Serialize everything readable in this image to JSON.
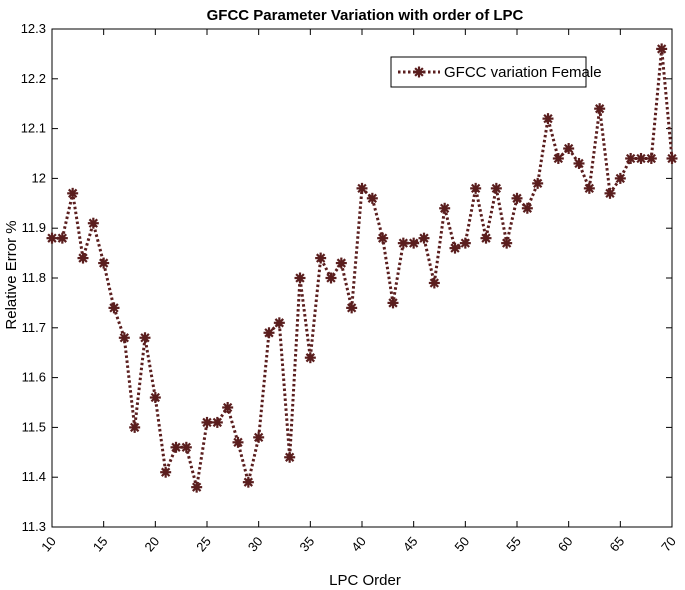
{
  "chart_data": {
    "type": "line",
    "title": "GFCC Parameter Variation with order of LPC",
    "xlabel": "LPC Order",
    "ylabel": "Relative Error %",
    "xlim": [
      10,
      70
    ],
    "ylim": [
      11.3,
      12.3
    ],
    "xticks": [
      "10",
      "15",
      "20",
      "25",
      "30",
      "35",
      "40",
      "45",
      "50",
      "55",
      "60",
      "65",
      "70"
    ],
    "yticks": [
      "11.3",
      "11.4",
      "11.5",
      "11.6",
      "11.7",
      "11.8",
      "11.9",
      "12",
      "12.1",
      "12.2",
      "12.3"
    ],
    "grid": false,
    "legend_position": "top-right",
    "series": [
      {
        "name": "GFCC variation Female",
        "color": "#5a1e1e",
        "line_style": "dotted",
        "marker": "asterisk",
        "x": [
          10,
          11,
          12,
          13,
          14,
          15,
          16,
          17,
          18,
          19,
          20,
          21,
          22,
          23,
          24,
          25,
          26,
          27,
          28,
          29,
          30,
          31,
          32,
          33,
          34,
          35,
          36,
          37,
          38,
          39,
          40,
          41,
          42,
          43,
          44,
          45,
          46,
          47,
          48,
          49,
          50,
          51,
          52,
          53,
          54,
          55,
          56,
          57,
          58,
          59,
          60,
          61,
          62,
          63,
          64,
          65,
          66,
          67,
          68,
          69,
          70
        ],
        "values": [
          11.88,
          11.88,
          11.97,
          11.84,
          11.91,
          11.83,
          11.74,
          11.68,
          11.5,
          11.68,
          11.56,
          11.41,
          11.46,
          11.46,
          11.38,
          11.51,
          11.51,
          11.54,
          11.47,
          11.39,
          11.48,
          11.69,
          11.71,
          11.44,
          11.8,
          11.64,
          11.84,
          11.8,
          11.83,
          11.74,
          11.98,
          11.96,
          11.88,
          11.75,
          11.87,
          11.87,
          11.88,
          11.79,
          11.94,
          11.86,
          11.87,
          11.98,
          11.88,
          11.98,
          11.87,
          11.96,
          11.94,
          11.99,
          12.12,
          12.04,
          12.06,
          12.03,
          11.98,
          12.14,
          11.97,
          12.0,
          12.04,
          12.04,
          12.04,
          12.26,
          12.04
        ]
      }
    ]
  }
}
